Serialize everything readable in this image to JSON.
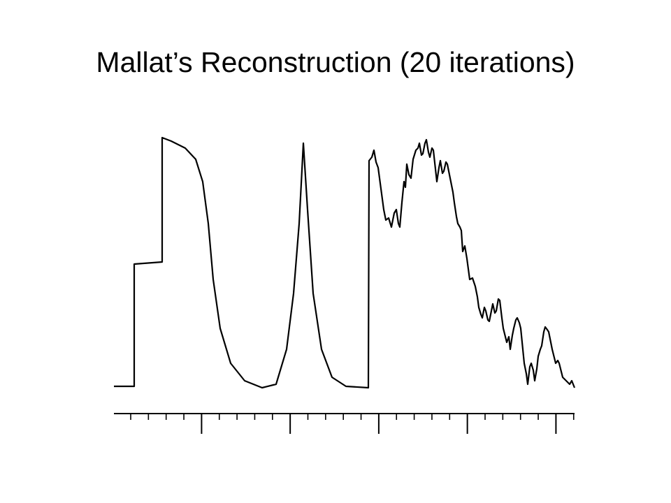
{
  "title": "Mallat’s Reconstruction (20 iterations)"
}
